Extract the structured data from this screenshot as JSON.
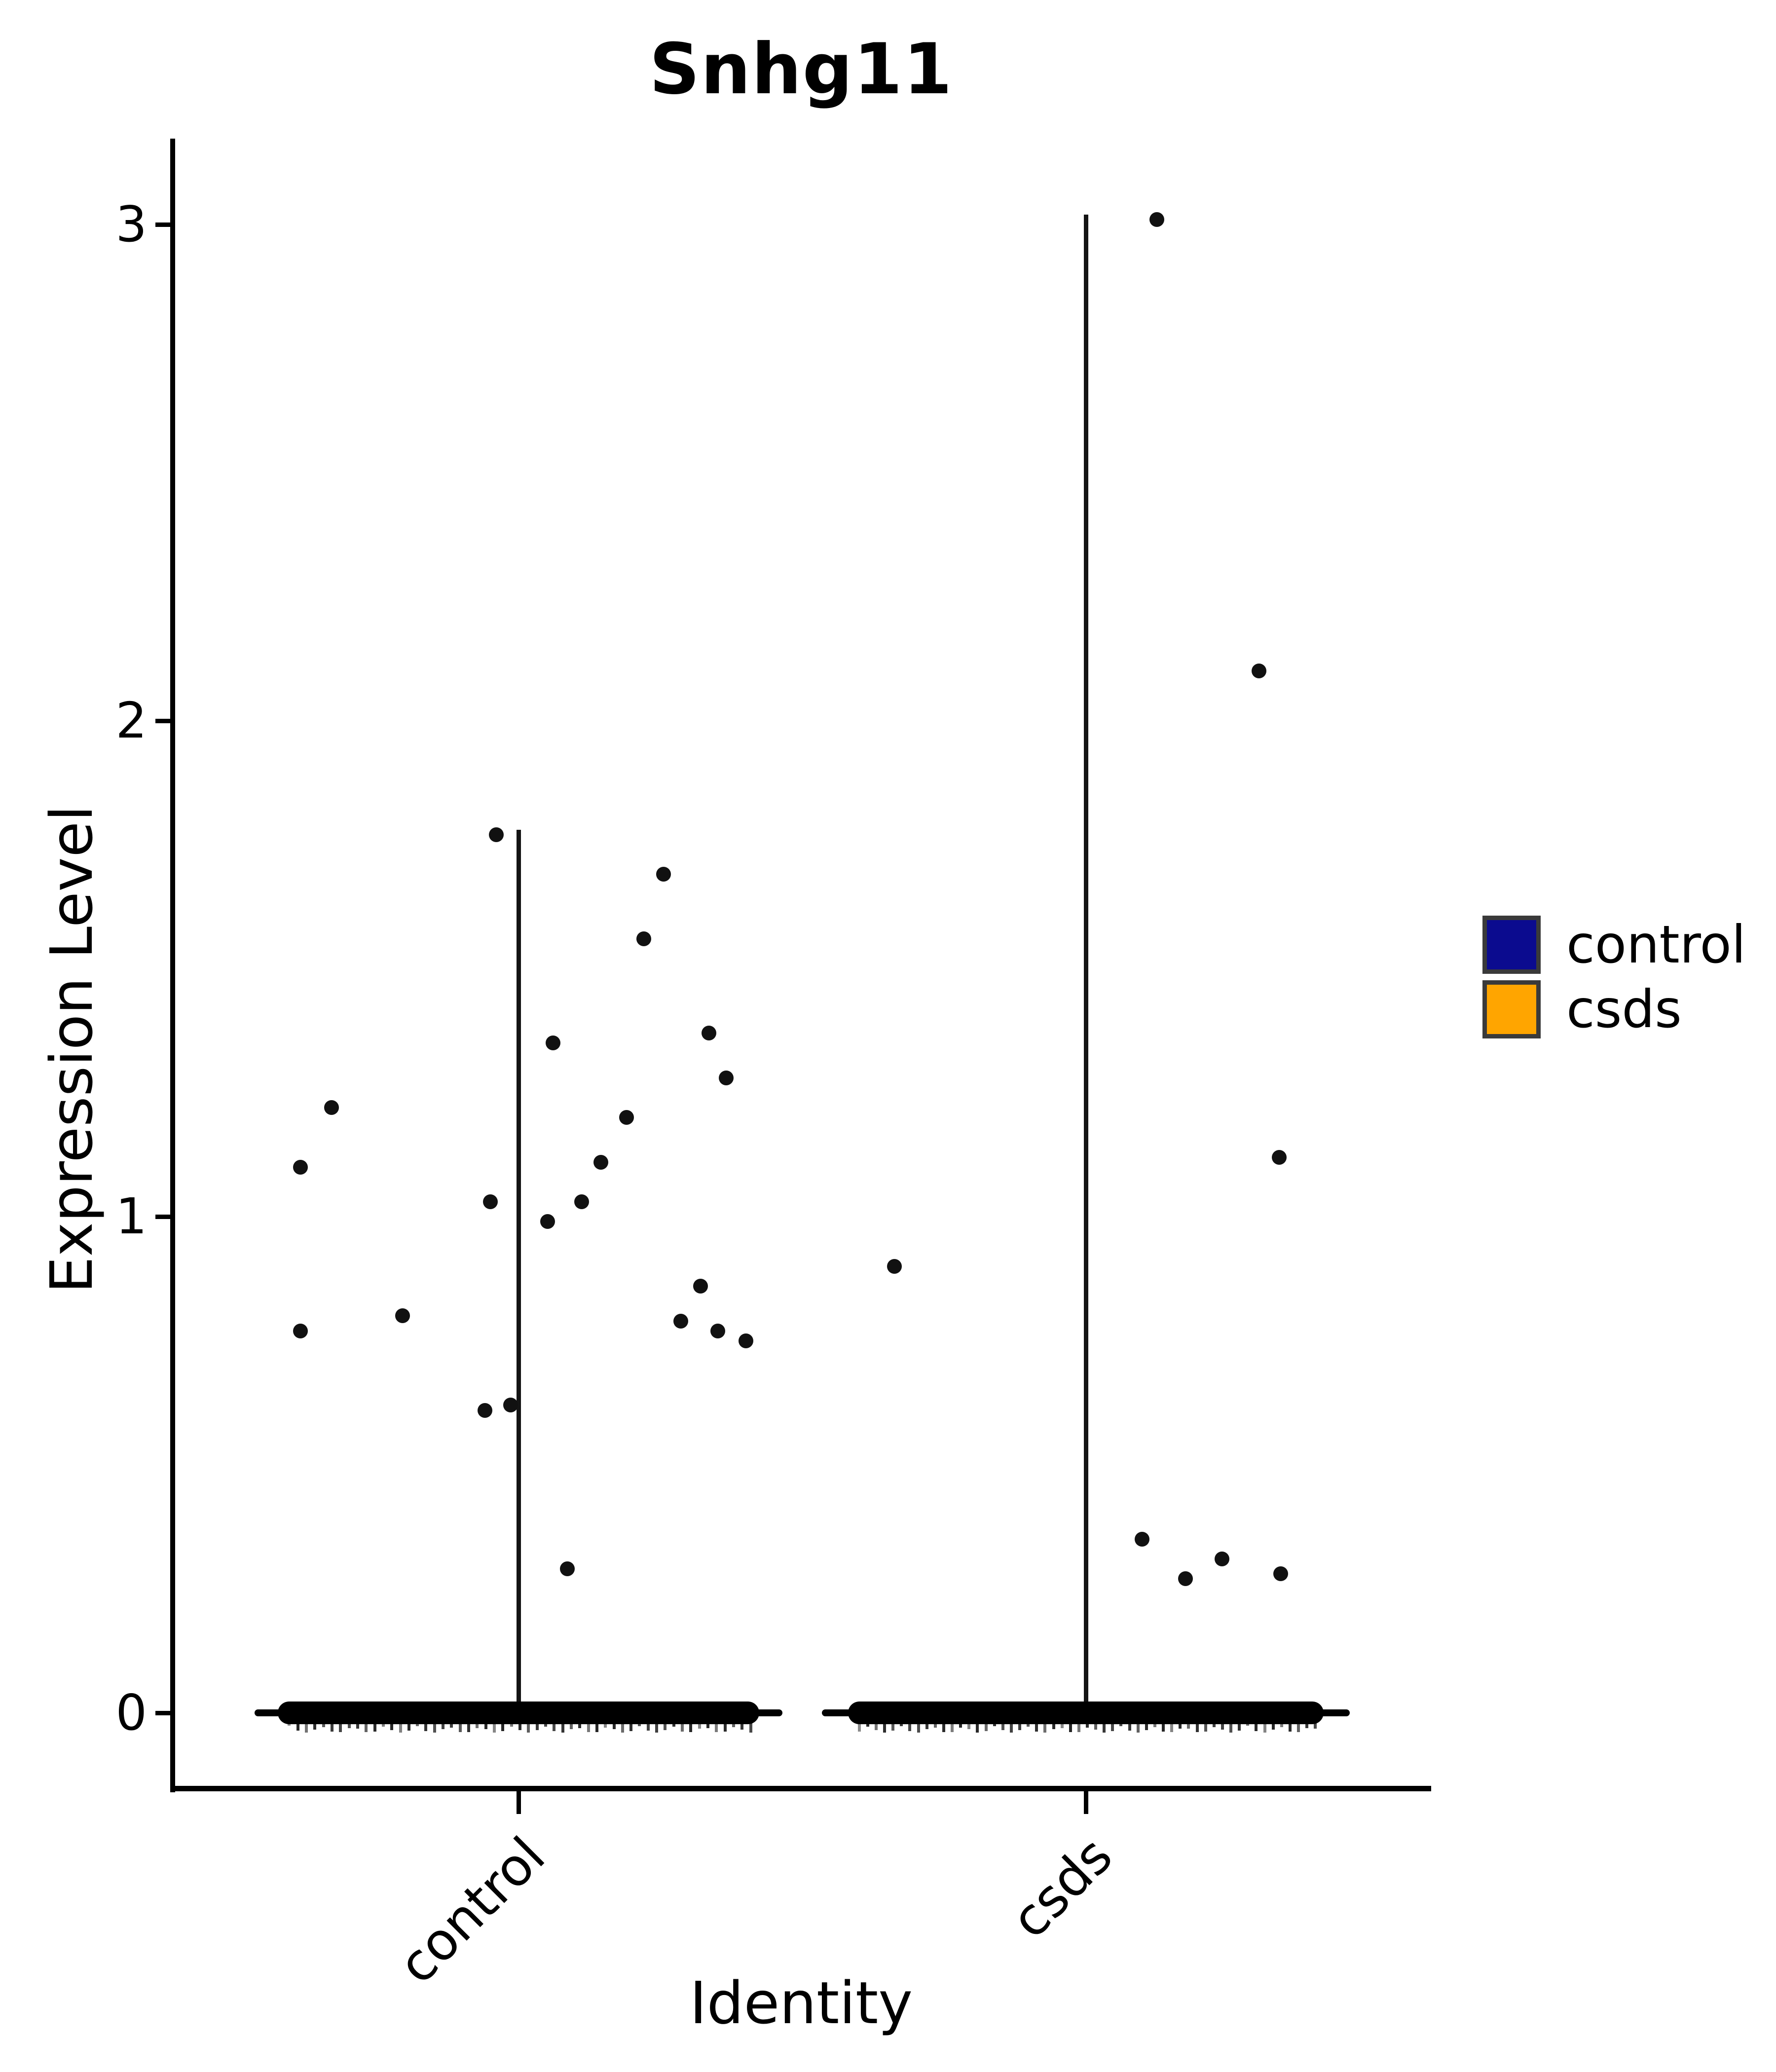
{
  "title": "Snhg11",
  "axes": {
    "x_label": "Identity",
    "y_label": "Expression Level",
    "y_tick_labels": [
      "0",
      "1",
      "2",
      "3"
    ],
    "x_categories": [
      "control",
      "csds"
    ]
  },
  "legend": {
    "items": [
      {
        "label": "control",
        "color": "#0b0b8f"
      },
      {
        "label": "csds",
        "color": "#ffa500"
      }
    ],
    "swatch_border_color": "#3a3a3a"
  },
  "chart_data": {
    "type": "violin",
    "title": "Snhg11",
    "xlabel": "Identity",
    "ylabel": "Expression Level",
    "ylim": [
      -0.16,
      3.17
    ],
    "y_ticks": [
      0,
      1,
      2,
      3
    ],
    "grid": false,
    "legend_position": "right",
    "categories": [
      "control",
      "csds"
    ],
    "point_color": "#111111",
    "line_color": "#141414",
    "series": [
      {
        "name": "control",
        "color": "#0b0b8f",
        "violin_spike_max": 1.78,
        "zero_band": {
          "value": 0,
          "half_width": 0.46,
          "outline_half_width": 0.505
        },
        "points": [
          {
            "v": 1.77,
            "jx": -0.042
          },
          {
            "v": 1.69,
            "jx": 0.277
          },
          {
            "v": 1.56,
            "jx": 0.24
          },
          {
            "v": 1.37,
            "jx": 0.364
          },
          {
            "v": 1.35,
            "jx": 0.066
          },
          {
            "v": 1.28,
            "jx": 0.397
          },
          {
            "v": 1.22,
            "jx": -0.358
          },
          {
            "v": 1.2,
            "jx": 0.207
          },
          {
            "v": 1.11,
            "jx": 0.158
          },
          {
            "v": 1.1,
            "jx": -0.417
          },
          {
            "v": 1.03,
            "jx": -0.054
          },
          {
            "v": 1.03,
            "jx": 0.121
          },
          {
            "v": 0.99,
            "jx": 0.056
          },
          {
            "v": 0.86,
            "jx": 0.348
          },
          {
            "v": 0.8,
            "jx": -0.222
          },
          {
            "v": 0.79,
            "jx": 0.31
          },
          {
            "v": 0.77,
            "jx": 0.381
          },
          {
            "v": 0.77,
            "jx": -0.417
          },
          {
            "v": 0.75,
            "jx": 0.435
          },
          {
            "v": 0.62,
            "jx": -0.015
          },
          {
            "v": 0.61,
            "jx": -0.064
          },
          {
            "v": 0.29,
            "jx": 0.093
          }
        ]
      },
      {
        "name": "csds",
        "color": "#ffa500",
        "violin_spike_max": 3.02,
        "zero_band": {
          "value": 0,
          "half_width": 0.455,
          "outline_half_width": 0.505
        },
        "points": [
          {
            "v": 3.01,
            "jx": 0.136
          },
          {
            "v": 2.1,
            "jx": 0.331
          },
          {
            "v": 1.12,
            "jx": 0.37
          },
          {
            "v": 0.9,
            "jx": -0.366
          },
          {
            "v": 0.35,
            "jx": 0.108
          },
          {
            "v": 0.31,
            "jx": 0.26
          },
          {
            "v": 0.28,
            "jx": 0.373
          },
          {
            "v": 0.27,
            "jx": 0.191
          }
        ]
      }
    ]
  }
}
